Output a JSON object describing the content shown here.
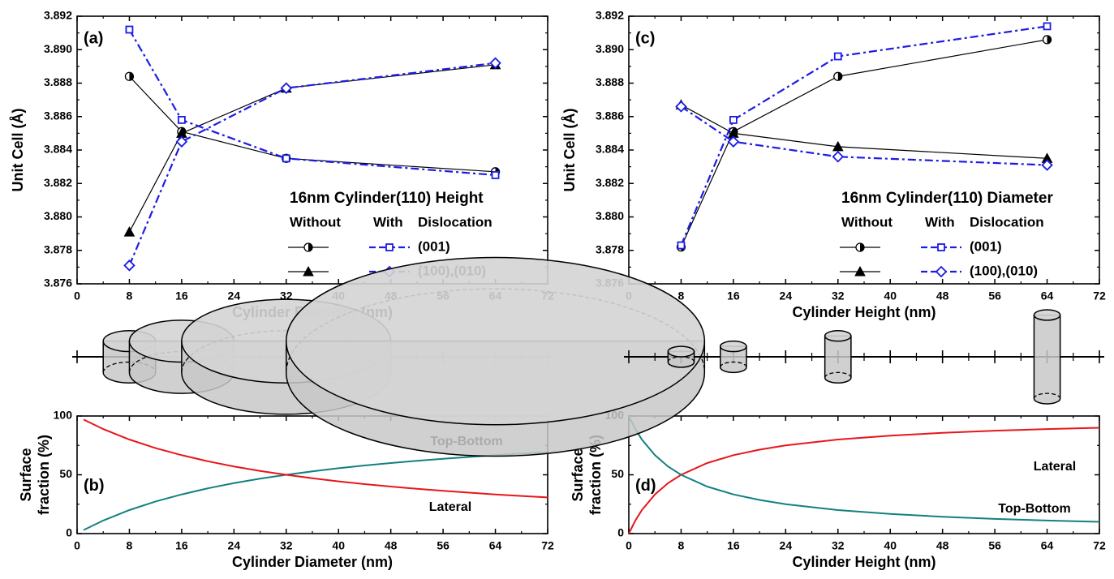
{
  "chart_data": [
    {
      "type": "line",
      "panel_label": "(a)",
      "xlabel": "Cylinder Diameter (nm)",
      "ylabel": "Unit Cell (Å)",
      "xlim": [
        0,
        72
      ],
      "xticks": [
        0,
        8,
        16,
        24,
        32,
        40,
        48,
        56,
        64,
        72
      ],
      "ylim": [
        3.876,
        3.892
      ],
      "yticks": [
        3.876,
        3.878,
        {
          "value": 3.88,
          "label": "3.880"
        },
        3.882,
        3.884,
        3.886,
        3.888,
        {
          "value": 3.89,
          "label": "3.890"
        },
        3.892
      ],
      "x": [
        8,
        16,
        32,
        64
      ],
      "legend": {
        "title": "16nm Cylinder(110) Height",
        "columns": [
          "Without",
          "With",
          "Dislocation"
        ],
        "rows": [
          "(001)",
          "(100),(010)"
        ]
      },
      "series": [
        {
          "color": "#000000",
          "marker": "half-circle",
          "dash": "solid",
          "values": [
            3.8884,
            3.8851,
            3.8835,
            3.8827
          ]
        },
        {
          "color": "#000000",
          "marker": "triangle",
          "dash": "solid",
          "values": [
            3.8791,
            3.885,
            3.8877,
            3.8891
          ]
        },
        {
          "color": "#1c1ce6",
          "marker": "square",
          "dash": "dash-dot",
          "values": [
            3.8912,
            3.8858,
            3.8835,
            3.8825
          ]
        },
        {
          "color": "#1c1ce6",
          "marker": "diamond",
          "dash": "dash-dot",
          "values": [
            3.8771,
            3.8845,
            3.8877,
            3.8892
          ]
        }
      ]
    },
    {
      "type": "curve",
      "panel_label": "(b)",
      "xlabel": "Cylinder Diameter (nm)",
      "ylabel": [
        "Surface",
        "fraction (%)"
      ],
      "xlim": [
        0,
        72
      ],
      "xticks": [
        0,
        8,
        16,
        24,
        32,
        40,
        48,
        56,
        64,
        72
      ],
      "ylim": [
        0,
        100
      ],
      "yticks": [
        0,
        50,
        100
      ],
      "x": [
        1,
        4,
        8,
        12,
        16,
        20,
        24,
        28,
        32,
        36,
        40,
        44,
        48,
        52,
        56,
        60,
        64,
        68,
        72
      ],
      "series": [
        {
          "name": "Top-Bottom",
          "color": "#138080",
          "values": [
            3.0,
            11.1,
            20.0,
            27.3,
            33.3,
            38.5,
            42.9,
            46.7,
            50.0,
            52.9,
            55.6,
            57.9,
            60.0,
            61.9,
            63.6,
            65.2,
            66.7,
            68.0,
            69.2
          ]
        },
        {
          "name": "Lateral",
          "color": "#e8161b",
          "values": [
            97.0,
            88.9,
            80.0,
            72.7,
            66.7,
            61.5,
            57.1,
            53.3,
            50.0,
            47.1,
            44.4,
            42.1,
            40.0,
            38.1,
            36.4,
            34.8,
            33.3,
            32.0,
            30.8
          ]
        }
      ]
    },
    {
      "type": "line",
      "panel_label": "(c)",
      "xlabel": "Cylinder Height (nm)",
      "ylabel": "Unit Cell (Å)",
      "xlim": [
        0,
        72
      ],
      "xticks": [
        0,
        8,
        16,
        24,
        32,
        40,
        48,
        56,
        64,
        72
      ],
      "ylim": [
        3.876,
        3.892
      ],
      "yticks": [
        3.876,
        3.878,
        {
          "value": 3.88,
          "label": "3.880"
        },
        3.882,
        3.884,
        3.886,
        3.888,
        {
          "value": 3.89,
          "label": "3.890"
        },
        3.892
      ],
      "x": [
        8,
        16,
        32,
        64
      ],
      "legend": {
        "title": "16nm Cylinder(110) Diameter",
        "columns": [
          "Without",
          "With",
          "Dislocation"
        ],
        "rows": [
          "(001)",
          "(100),(010)"
        ]
      },
      "series": [
        {
          "color": "#000000",
          "marker": "half-circle",
          "dash": "solid",
          "values": [
            3.8782,
            3.8851,
            3.8884,
            3.8906
          ]
        },
        {
          "color": "#000000",
          "marker": "triangle",
          "dash": "solid",
          "values": [
            3.8867,
            3.885,
            3.8842,
            3.8835
          ]
        },
        {
          "color": "#1c1ce6",
          "marker": "square",
          "dash": "dash-dot",
          "values": [
            3.8783,
            3.8858,
            3.8896,
            3.8914
          ]
        },
        {
          "color": "#1c1ce6",
          "marker": "diamond",
          "dash": "dash-dot",
          "values": [
            3.8866,
            3.8845,
            3.8836,
            3.8831
          ]
        }
      ]
    },
    {
      "type": "curve",
      "panel_label": "(d)",
      "xlabel": "Cylinder Height (nm)",
      "ylabel": [
        "Surface",
        "fraction (%)"
      ],
      "xlim": [
        0,
        72
      ],
      "xticks": [
        0,
        8,
        16,
        24,
        32,
        40,
        48,
        56,
        64,
        72
      ],
      "ylim": [
        0,
        100
      ],
      "yticks": [
        0,
        50,
        100
      ],
      "x": [
        0,
        1,
        2,
        4,
        6,
        8,
        12,
        16,
        20,
        24,
        32,
        40,
        48,
        56,
        64,
        72
      ],
      "series": [
        {
          "name": "Lateral",
          "color": "#e8161b",
          "values": [
            0,
            11.1,
            20.0,
            33.3,
            42.9,
            50.0,
            60.0,
            66.7,
            71.4,
            75.0,
            80.0,
            83.3,
            85.7,
            87.5,
            88.9,
            90.0
          ]
        },
        {
          "name": "Top-Bottom",
          "color": "#138080",
          "values": [
            100,
            88.9,
            80.0,
            66.7,
            57.1,
            50.0,
            40.0,
            33.3,
            28.6,
            25.0,
            20.0,
            16.7,
            14.3,
            12.5,
            11.1,
            10.0
          ]
        }
      ]
    }
  ]
}
